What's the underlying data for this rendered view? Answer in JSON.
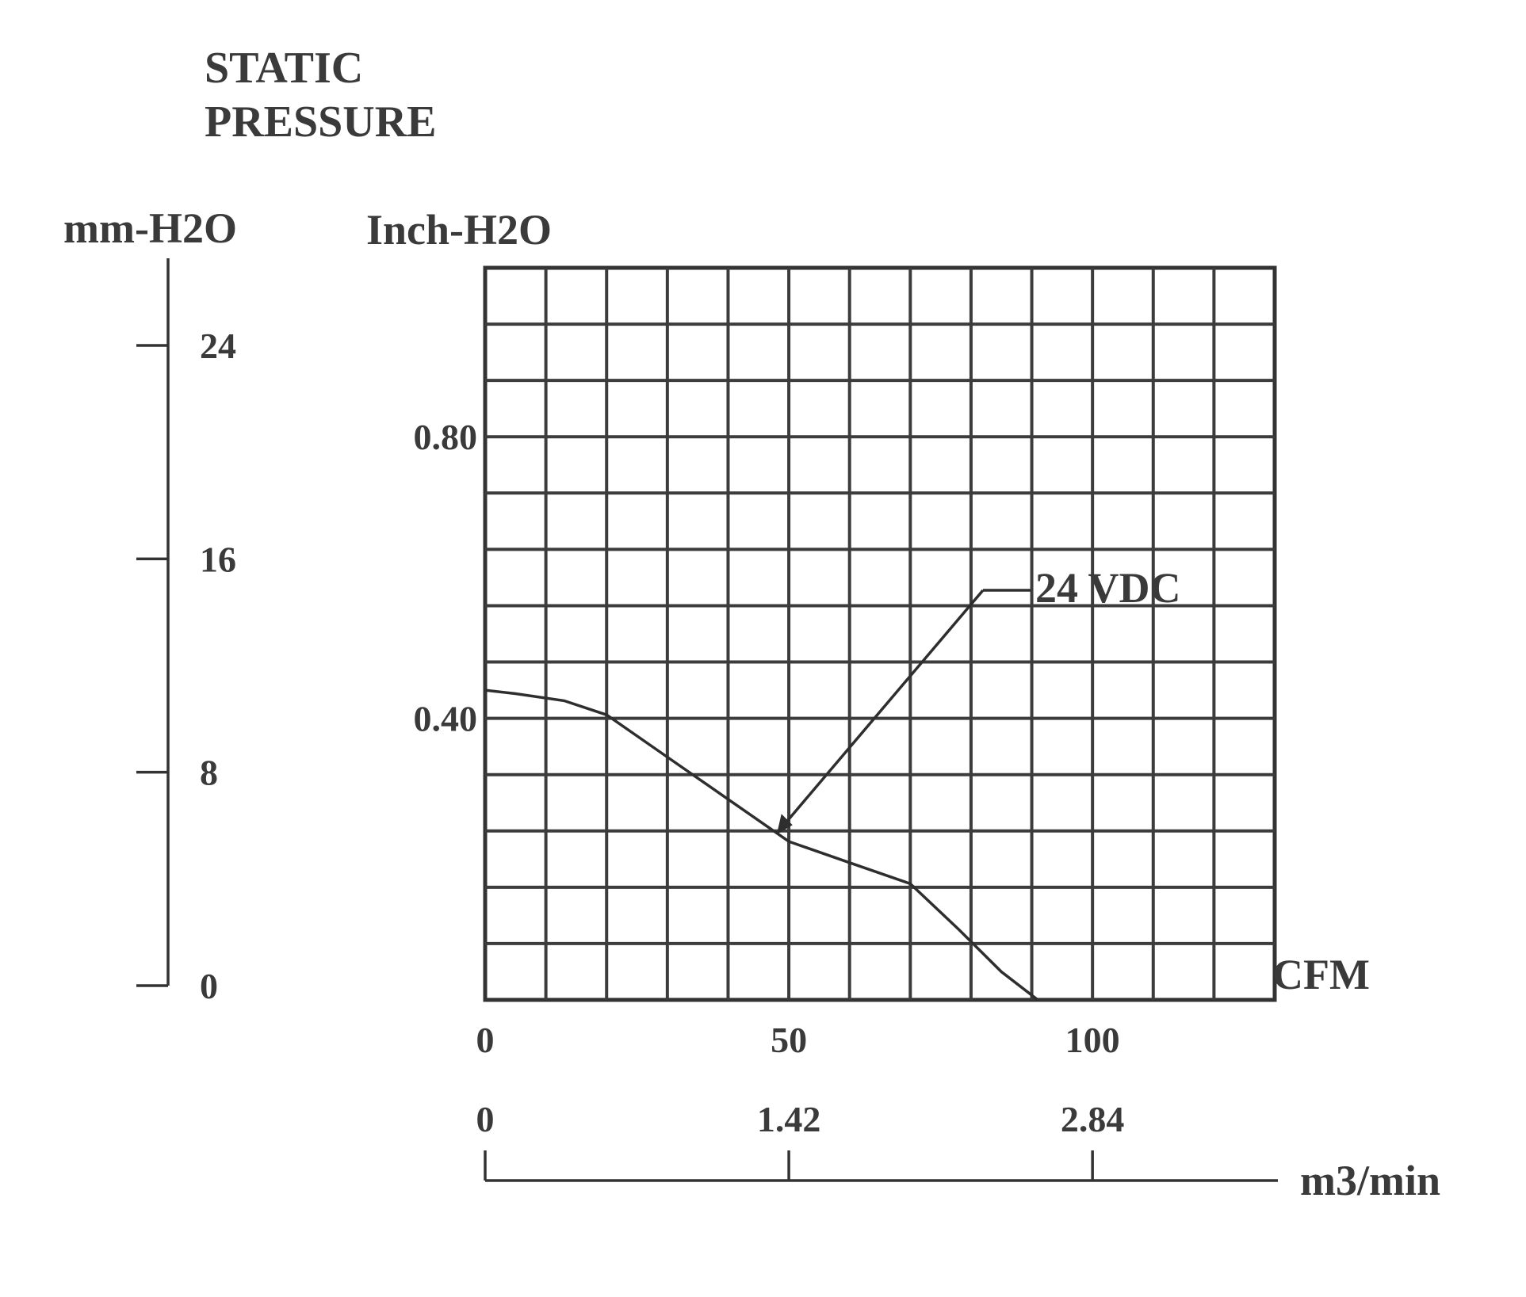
{
  "chart_data": {
    "type": "line",
    "title": [
      "STATIC",
      "PRESSURE"
    ],
    "left_axis": {
      "unit": "mm-H2O",
      "ticks": [
        "24",
        "16",
        "8",
        "0"
      ],
      "tick_values": [
        24,
        16,
        8,
        0
      ]
    },
    "y_axis": {
      "unit": "Inch-H2O",
      "ticks": [
        "0.80",
        "0.40"
      ],
      "tick_values": [
        0.8,
        0.4
      ],
      "range": [
        0,
        1.04
      ]
    },
    "x_axis": {
      "unit": "CFM",
      "ticks": [
        "0",
        "50",
        "100"
      ],
      "tick_values": [
        0,
        50,
        100
      ],
      "range": [
        0,
        130
      ]
    },
    "x2_axis": {
      "unit": "m3/min",
      "ticks": [
        "0",
        "1.42",
        "2.84"
      ],
      "tick_values": [
        0,
        1.42,
        2.84
      ]
    },
    "grid": true,
    "series": [
      {
        "name": "24 VDC",
        "x": [
          0,
          5,
          13,
          20,
          30,
          40,
          50,
          60,
          70,
          78,
          85,
          91
        ],
        "y": [
          0.44,
          0.435,
          0.425,
          0.405,
          0.345,
          0.285,
          0.225,
          0.195,
          0.165,
          0.1,
          0.04,
          0
        ]
      }
    ]
  }
}
